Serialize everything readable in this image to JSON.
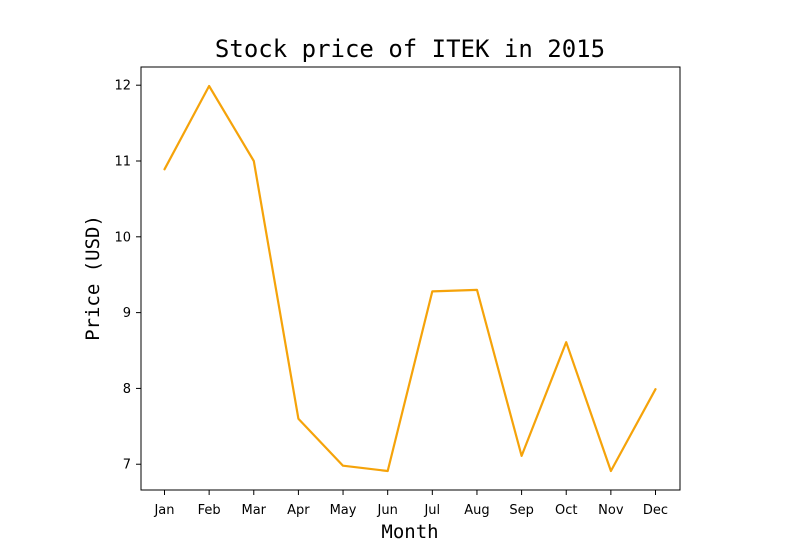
{
  "chart_data": {
    "type": "line",
    "title": "Stock price of ITEK in 2015",
    "xlabel": "Month",
    "ylabel": "Price (USD)",
    "categories": [
      "Jan",
      "Feb",
      "Mar",
      "Apr",
      "May",
      "Jun",
      "Jul",
      "Aug",
      "Sep",
      "Oct",
      "Nov",
      "Dec"
    ],
    "series": [
      {
        "values": [
          10.89,
          11.99,
          11.0,
          7.6,
          6.98,
          6.91,
          9.28,
          9.3,
          7.11,
          8.61,
          6.91,
          7.99
        ],
        "color": "#f5a30a"
      }
    ],
    "yticks": [
      7,
      8,
      9,
      10,
      11,
      12
    ],
    "ylim": [
      6.66,
      12.24
    ],
    "grid": false,
    "legend": "none"
  }
}
